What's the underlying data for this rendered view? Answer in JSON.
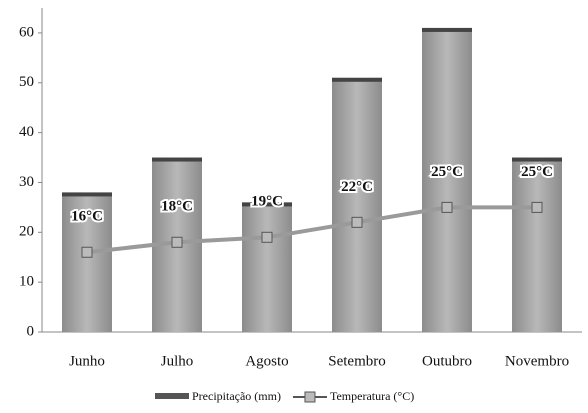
{
  "chart_data": {
    "type": "bar-line",
    "categories": [
      "Junho",
      "Julho",
      "Agosto",
      "Setembro",
      "Outubro",
      "Novembro"
    ],
    "series": [
      {
        "name": "Precipitação (mm)",
        "type": "bar",
        "color": "#a6a6a6",
        "values": [
          28,
          35,
          26,
          51,
          61,
          35
        ]
      },
      {
        "name": "Temperatura (°C)",
        "type": "line",
        "color": "#9a9a9a",
        "values": [
          16,
          18,
          19,
          22,
          25,
          25
        ],
        "value_labels": [
          "16°C",
          "18°C",
          "19°C",
          "22°C",
          "25°C",
          "25°C"
        ]
      }
    ],
    "ylim": [
      0,
      65
    ],
    "yticks": [
      0,
      10,
      20,
      30,
      40,
      50,
      60
    ],
    "grid": false,
    "legend": "bottom"
  }
}
